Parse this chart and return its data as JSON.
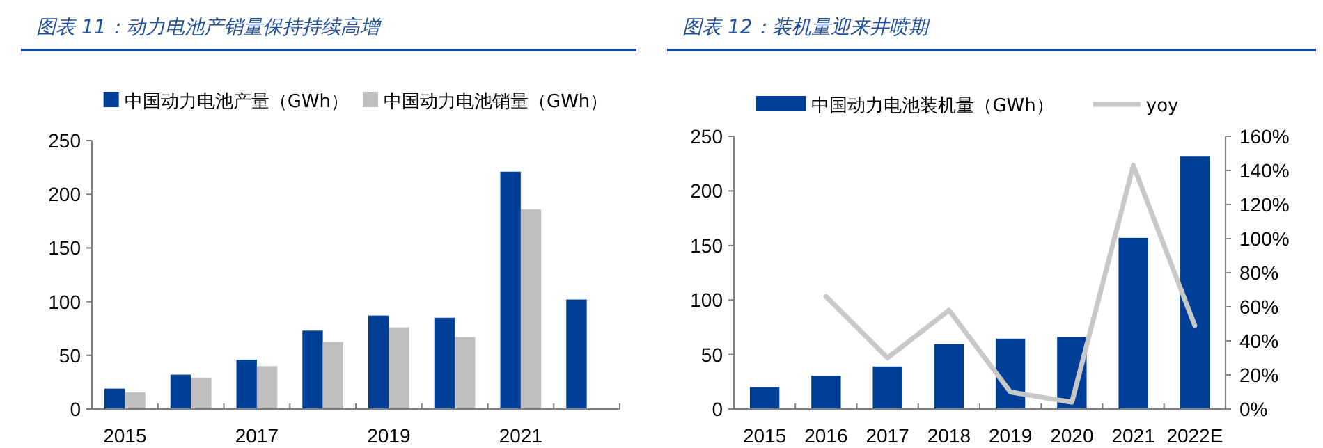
{
  "chart_data": [
    {
      "type": "bar",
      "title": "图表 11：动力电池产销量保持持续高增",
      "legend": "top",
      "categories": [
        "2015",
        null,
        "2017",
        null,
        "2019",
        null,
        "2021",
        null
      ],
      "series": [
        {
          "name": "中国动力电池产量（GWh）",
          "color": "#003f98",
          "values": [
            19,
            32,
            46,
            73,
            87,
            85,
            221,
            102
          ]
        },
        {
          "name": "中国动力电池销量（GWh）",
          "color": "#bfbfbf",
          "values": [
            15.5,
            29,
            40,
            62.5,
            76,
            67,
            186,
            null
          ]
        }
      ],
      "ylim": [
        0,
        250
      ],
      "yticks": [
        0,
        50,
        100,
        150,
        200,
        250
      ]
    },
    {
      "type": "bar",
      "title": "图表 12：装机量迎来井喷期",
      "legend": "top",
      "categories": [
        "2015",
        "2016",
        "2017",
        "2018",
        "2019",
        "2020",
        "2021",
        "2022E"
      ],
      "series": [
        {
          "name": "中国动力电池装机量（GWh）",
          "color": "#003f98",
          "values": [
            20,
            30.5,
            39,
            59.5,
            64.5,
            66,
            157,
            232
          ]
        },
        {
          "name": "yoy",
          "type": "line",
          "axis": "y2",
          "color": "#c8c8c8",
          "values": [
            null,
            66,
            30,
            58,
            10,
            4,
            143,
            49
          ]
        }
      ],
      "ylim": [
        0,
        250
      ],
      "yticks": [
        0,
        50,
        100,
        150,
        200,
        250
      ],
      "y2lim": [
        0,
        160
      ],
      "y2ticks": [
        {
          "value": 0,
          "label": "0%"
        },
        {
          "value": 20,
          "label": "20%"
        },
        {
          "value": 40,
          "label": "40%"
        },
        {
          "value": 60,
          "label": "60%"
        },
        {
          "value": 80,
          "label": "80%"
        },
        {
          "value": 100,
          "label": "100%"
        },
        {
          "value": 120,
          "label": "120%"
        },
        {
          "value": 140,
          "label": "140%"
        },
        {
          "value": 160,
          "label": "160%"
        }
      ]
    }
  ]
}
